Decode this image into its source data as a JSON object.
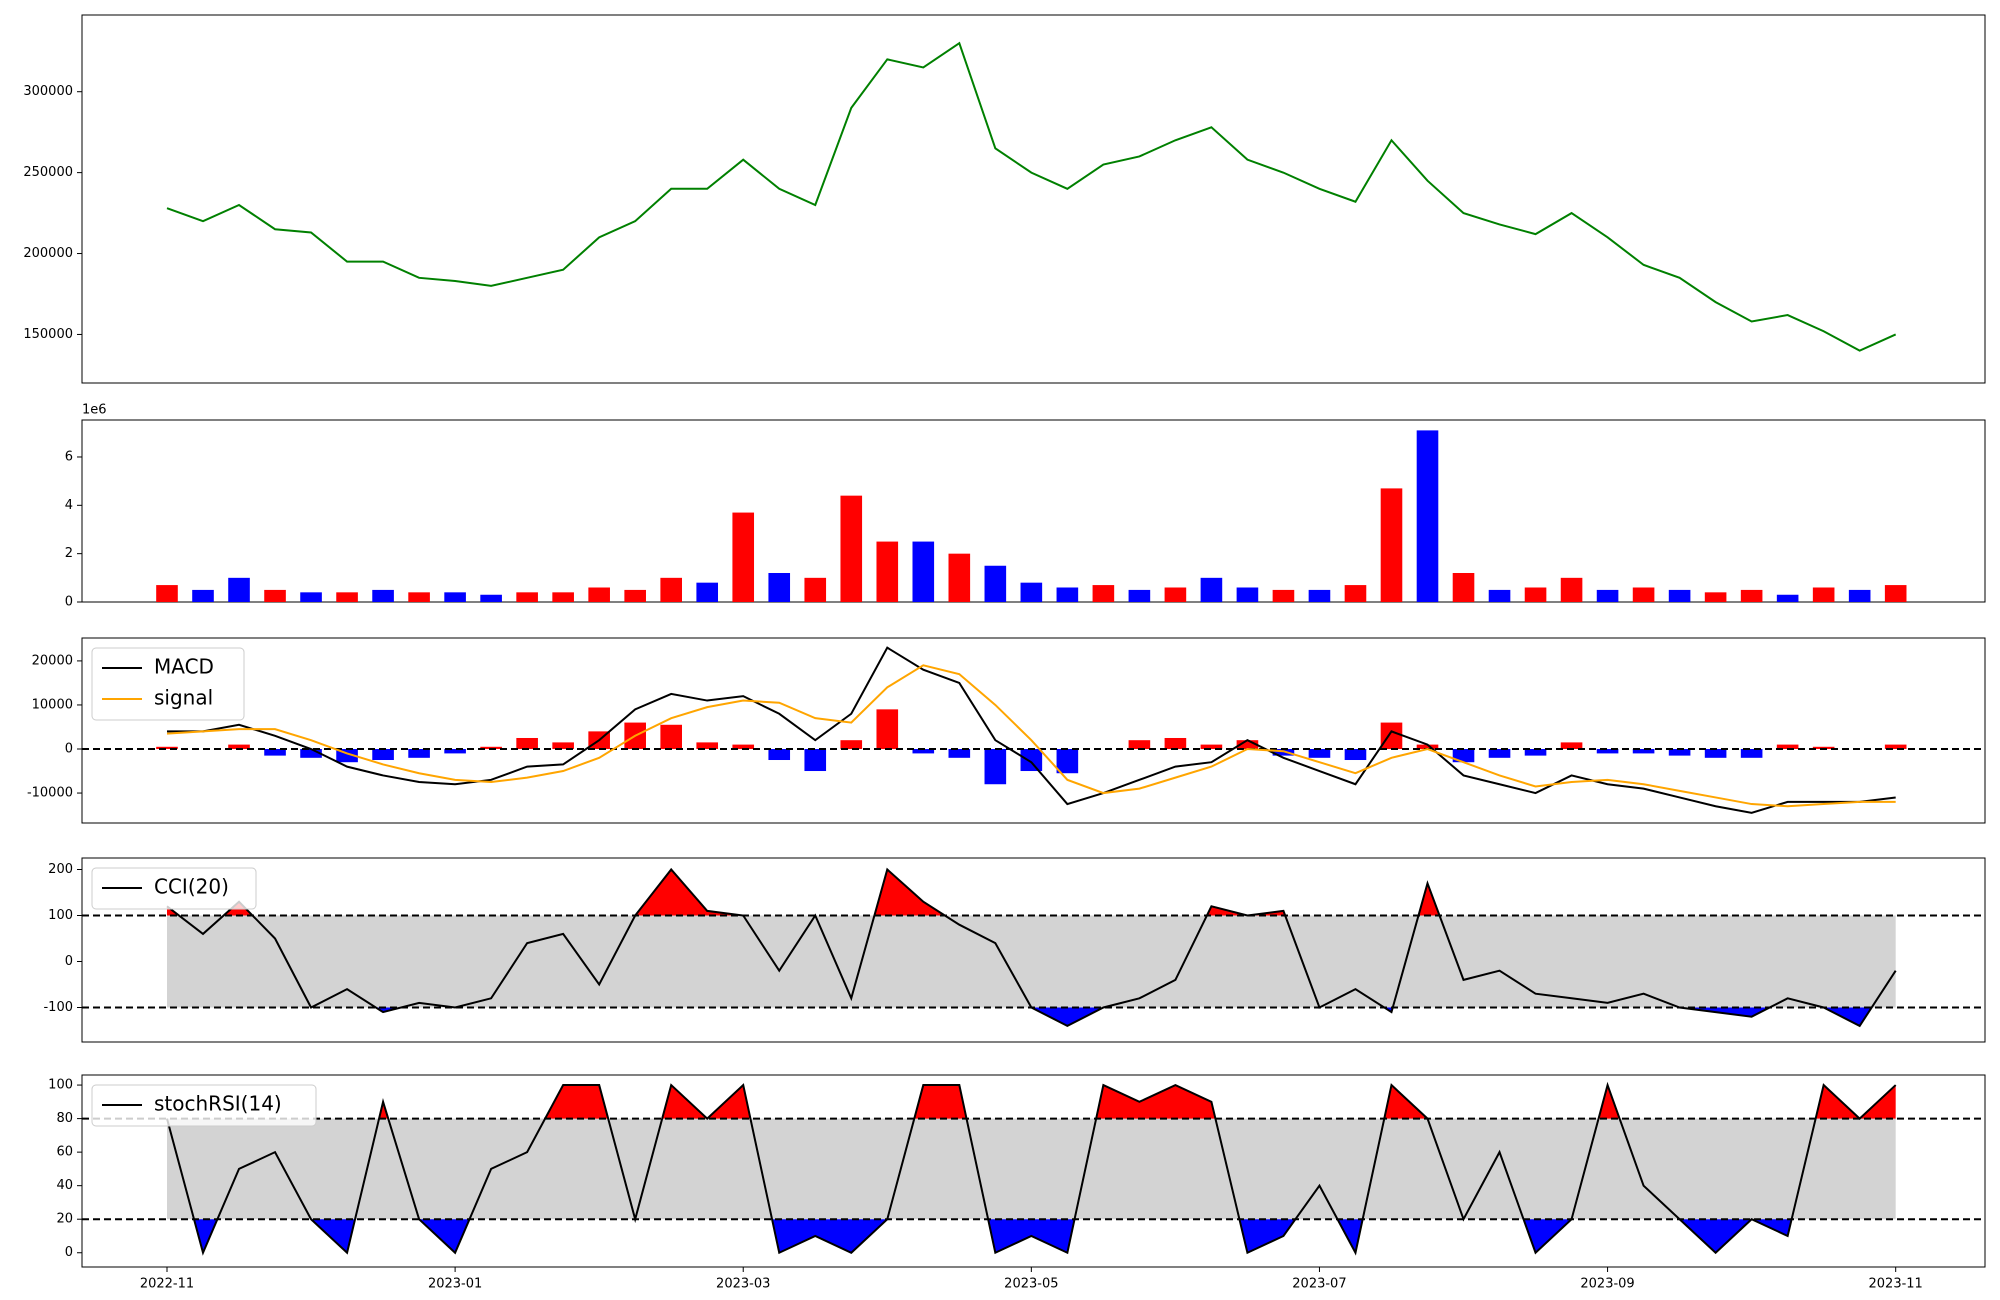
{
  "chart_data": [
    {
      "type": "line",
      "color": "green",
      "x": [
        0,
        0.25,
        0.5,
        0.75,
        1,
        1.25,
        1.5,
        1.75,
        2,
        2.25,
        2.5,
        2.75,
        3,
        3.25,
        3.5,
        3.75,
        4,
        4.25,
        4.5,
        4.75,
        5,
        5.25,
        5.5,
        5.75,
        6,
        6.25,
        6.5,
        6.75,
        7,
        7.25,
        7.5,
        7.75,
        8,
        8.25,
        8.5,
        8.75,
        9,
        9.25,
        9.5,
        9.75,
        10,
        10.25,
        10.5,
        10.75,
        11,
        11.25,
        11.5,
        11.75,
        12
      ],
      "values": [
        228000,
        220000,
        230000,
        215000,
        213000,
        195000,
        195000,
        185000,
        183000,
        180000,
        185000,
        190000,
        210000,
        220000,
        240000,
        240000,
        258000,
        240000,
        230000,
        290000,
        320000,
        315000,
        330000,
        265000,
        250000,
        240000,
        255000,
        260000,
        270000,
        278000,
        258000,
        250000,
        240000,
        232000,
        270000,
        245000,
        225000,
        218000,
        212000,
        225000,
        210000,
        193000,
        185000,
        170000,
        158000,
        162000,
        152000,
        140000,
        150000
      ],
      "xlim": [
        -0.59,
        12.62
      ],
      "ylim": [
        120000,
        347400
      ],
      "yticks": [
        150000,
        200000,
        250000,
        300000
      ]
    },
    {
      "type": "bar",
      "offset_label": "1e6",
      "x": [
        0,
        0.25,
        0.5,
        0.75,
        1,
        1.25,
        1.5,
        1.75,
        2,
        2.25,
        2.5,
        2.75,
        3,
        3.25,
        3.5,
        3.75,
        4,
        4.25,
        4.5,
        4.75,
        5,
        5.25,
        5.5,
        5.75,
        6,
        6.25,
        6.5,
        6.75,
        7,
        7.25,
        7.5,
        7.75,
        8,
        8.25,
        8.5,
        8.75,
        9,
        9.25,
        9.5,
        9.75,
        10,
        10.25,
        10.5,
        10.75,
        11,
        11.25,
        11.5,
        11.75,
        12
      ],
      "values": [
        0.7,
        0.5,
        1.0,
        0.5,
        0.4,
        0.4,
        0.5,
        0.4,
        0.4,
        0.3,
        0.4,
        0.4,
        0.6,
        0.5,
        1.0,
        0.8,
        3.7,
        1.2,
        1.0,
        4.4,
        2.5,
        2.5,
        2.0,
        1.5,
        0.8,
        0.6,
        0.7,
        0.5,
        0.6,
        1.0,
        0.6,
        0.5,
        0.5,
        0.7,
        4.7,
        7.1,
        1.2,
        0.5,
        0.6,
        1.0,
        0.5,
        0.6,
        0.5,
        0.4,
        0.5,
        0.3,
        0.6,
        0.5,
        0.7
      ],
      "colors": [
        "red",
        "blue",
        "blue",
        "red",
        "blue",
        "red",
        "blue",
        "red",
        "blue",
        "blue",
        "red",
        "red",
        "red",
        "red",
        "red",
        "blue",
        "red",
        "blue",
        "red",
        "red",
        "red",
        "blue",
        "red",
        "blue",
        "blue",
        "blue",
        "red",
        "blue",
        "red",
        "blue",
        "blue",
        "red",
        "blue",
        "red",
        "red",
        "blue",
        "red",
        "blue",
        "red",
        "red",
        "blue",
        "red",
        "blue",
        "red",
        "red",
        "blue",
        "red",
        "blue",
        "red"
      ],
      "xlim": [
        -0.59,
        12.62
      ],
      "ylim": [
        0,
        7.53
      ],
      "yticks": [
        0,
        2,
        4,
        6
      ]
    },
    {
      "type": "line",
      "legend": "upper left",
      "hlines": [
        0
      ],
      "x": [
        0,
        0.25,
        0.5,
        0.75,
        1,
        1.25,
        1.5,
        1.75,
        2,
        2.25,
        2.5,
        2.75,
        3,
        3.25,
        3.5,
        3.75,
        4,
        4.25,
        4.5,
        4.75,
        5,
        5.25,
        5.5,
        5.75,
        6,
        6.25,
        6.5,
        6.75,
        7,
        7.25,
        7.5,
        7.75,
        8,
        8.25,
        8.5,
        8.75,
        9,
        9.25,
        9.5,
        9.75,
        10,
        10.25,
        10.5,
        10.75,
        11,
        11.25,
        11.5,
        11.75,
        12
      ],
      "series": [
        {
          "name": "MACD",
          "color": "black",
          "values": [
            4000,
            4000,
            5500,
            3000,
            0,
            -4000,
            -6000,
            -7500,
            -8000,
            -7000,
            -4000,
            -3500,
            2000,
            9000,
            12500,
            11000,
            12000,
            8000,
            2000,
            8000,
            23000,
            18000,
            15000,
            2000,
            -3000,
            -12500,
            -10000,
            -7000,
            -4000,
            -3000,
            2000,
            -2000,
            -5000,
            -8000,
            4000,
            1000,
            -6000,
            -8000,
            -10000,
            -6000,
            -8000,
            -9000,
            -11000,
            -13000,
            -14500,
            -12000,
            -12000,
            -12000,
            -11000
          ]
        },
        {
          "name": "signal",
          "color": "orange",
          "values": [
            3500,
            4000,
            4500,
            4500,
            2000,
            -1000,
            -3500,
            -5500,
            -7000,
            -7500,
            -6500,
            -5000,
            -2000,
            3000,
            7000,
            9500,
            11000,
            10500,
            7000,
            6000,
            14000,
            19000,
            17000,
            10000,
            2000,
            -7000,
            -10000,
            -9000,
            -6500,
            -4000,
            0,
            -500,
            -3000,
            -5500,
            -2000,
            0,
            -3000,
            -6000,
            -8500,
            -7500,
            -7000,
            -8000,
            -9500,
            -11000,
            -12500,
            -13000,
            -12500,
            -12000,
            -12000
          ]
        }
      ],
      "histogram": {
        "positive_color": "red",
        "negative_color": "blue",
        "values": [
          500,
          0,
          1000,
          -1500,
          -2000,
          -3000,
          -2500,
          -2000,
          -1000,
          500,
          2500,
          1500,
          4000,
          6000,
          5500,
          1500,
          1000,
          -2500,
          -5000,
          2000,
          9000,
          -1000,
          -2000,
          -8000,
          -5000,
          -5500,
          0,
          2000,
          2500,
          1000,
          2000,
          -1500,
          -2000,
          -2500,
          6000,
          1000,
          -3000,
          -2000,
          -1500,
          1500,
          -1000,
          -1000,
          -1500,
          -2000,
          -2000,
          1000,
          500,
          0,
          1000
        ]
      },
      "xlim": [
        -0.59,
        12.62
      ],
      "ylim": [
        -16800,
        25200
      ],
      "yticks": [
        -10000,
        0,
        10000,
        20000
      ]
    },
    {
      "type": "line",
      "legend": "upper left",
      "hlines": [
        -100,
        100
      ],
      "band_color": "lightgray",
      "above_color": "red",
      "below_color": "blue",
      "x": [
        0,
        0.25,
        0.5,
        0.75,
        1,
        1.25,
        1.5,
        1.75,
        2,
        2.25,
        2.5,
        2.75,
        3,
        3.25,
        3.5,
        3.75,
        4,
        4.25,
        4.5,
        4.75,
        5,
        5.25,
        5.5,
        5.75,
        6,
        6.25,
        6.5,
        6.75,
        7,
        7.25,
        7.5,
        7.75,
        8,
        8.25,
        8.5,
        8.75,
        9,
        9.25,
        9.5,
        9.75,
        10,
        10.25,
        10.5,
        10.75,
        11,
        11.25,
        11.5,
        11.75,
        12
      ],
      "series": [
        {
          "name": "CCI(20)",
          "color": "black",
          "values": [
            120,
            60,
            130,
            50,
            -100,
            -60,
            -110,
            -90,
            -100,
            -80,
            40,
            60,
            -50,
            100,
            200,
            110,
            100,
            -20,
            100,
            -80,
            200,
            130,
            80,
            40,
            -100,
            -140,
            -100,
            -80,
            -40,
            120,
            100,
            110,
            -100,
            -60,
            -110,
            170,
            -40,
            -20,
            -70,
            -80,
            -90,
            -70,
            -100,
            -110,
            -120,
            -80,
            -100,
            -140,
            -20
          ]
        }
      ],
      "xlim": [
        -0.59,
        12.62
      ],
      "ylim": [
        -175,
        225
      ],
      "yticks": [
        -100,
        0,
        100,
        200
      ]
    },
    {
      "type": "line",
      "legend": "upper left",
      "hlines": [
        20,
        80
      ],
      "band_color": "lightgray",
      "above_color": "red",
      "below_color": "blue",
      "x": [
        0,
        0.25,
        0.5,
        0.75,
        1,
        1.25,
        1.5,
        1.75,
        2,
        2.25,
        2.5,
        2.75,
        3,
        3.25,
        3.5,
        3.75,
        4,
        4.25,
        4.5,
        4.75,
        5,
        5.25,
        5.5,
        5.75,
        6,
        6.25,
        6.5,
        6.75,
        7,
        7.25,
        7.5,
        7.75,
        8,
        8.25,
        8.5,
        8.75,
        9,
        9.25,
        9.5,
        9.75,
        10,
        10.25,
        10.5,
        10.75,
        11,
        11.25,
        11.5,
        11.75,
        12
      ],
      "series": [
        {
          "name": "stochRSI(14)",
          "color": "black",
          "values": [
            80,
            0,
            50,
            60,
            20,
            0,
            90,
            20,
            0,
            50,
            60,
            100,
            100,
            20,
            100,
            80,
            100,
            0,
            10,
            0,
            20,
            100,
            100,
            0,
            10,
            0,
            100,
            90,
            100,
            90,
            0,
            10,
            40,
            0,
            100,
            80,
            20,
            60,
            0,
            20,
            100,
            40,
            20,
            0,
            20,
            10,
            100,
            80,
            100
          ]
        }
      ],
      "xlim": [
        -0.59,
        12.62
      ],
      "ylim": [
        -8.5,
        106
      ],
      "yticks": [
        0,
        20,
        40,
        60,
        80,
        100
      ],
      "xticks": [
        {
          "value": 0,
          "label": "2022-11"
        },
        {
          "value": 2,
          "label": "2023-01"
        },
        {
          "value": 4,
          "label": "2023-03"
        },
        {
          "value": 6,
          "label": "2023-05"
        },
        {
          "value": 8,
          "label": "2023-07"
        },
        {
          "value": 10,
          "label": "2023-09"
        },
        {
          "value": 12,
          "label": "2023-11"
        }
      ]
    }
  ]
}
